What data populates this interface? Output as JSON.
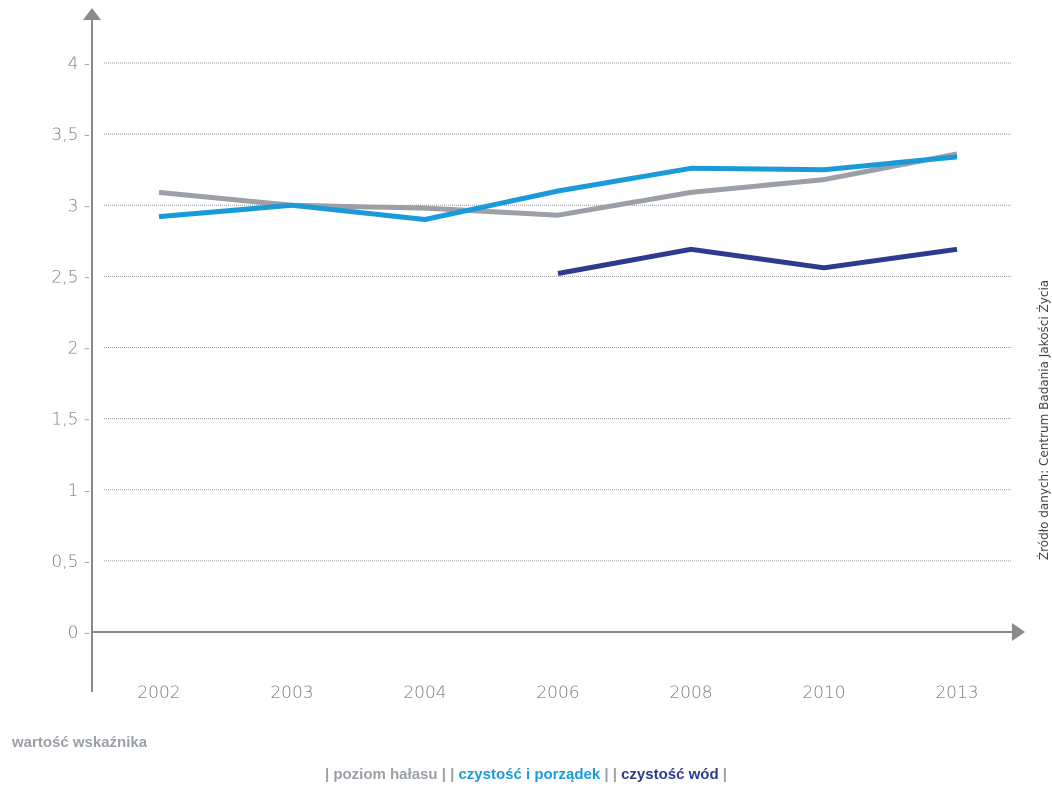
{
  "caption": "wartość wskaźnika",
  "source_note": "Źródło danych: Centrum Badania Jakości Życia",
  "legend": {
    "sep_open": "| ",
    "sep_mid": " | | ",
    "sep_close": " |"
  },
  "chart_data": {
    "type": "line",
    "title": "",
    "xlabel": "",
    "ylabel": "wartość wskaźnika",
    "categories": [
      "2002",
      "2003",
      "2004",
      "2006",
      "2008",
      "2010",
      "2013"
    ],
    "ylim": [
      0,
      4
    ],
    "yticks": [
      "0 -",
      "0,5 -",
      "1 -",
      "1,5 -",
      "2 -",
      "2,5 -",
      "3 -",
      "3,5 -",
      "4 -"
    ],
    "grid": true,
    "legend_position": "bottom-center",
    "series": [
      {
        "name": "poziom hałasu",
        "color": "#9aa0a6",
        "values": [
          3.09,
          3.0,
          2.98,
          2.93,
          3.09,
          3.18,
          3.36
        ]
      },
      {
        "name": "czystość i porządek",
        "color": "#1a9ad8",
        "values": [
          2.92,
          3.0,
          2.9,
          3.1,
          3.26,
          3.25,
          3.34
        ]
      },
      {
        "name": "czystość wód",
        "color": "#2e3a8c",
        "values": [
          null,
          null,
          null,
          2.52,
          2.69,
          2.56,
          2.69
        ]
      }
    ]
  }
}
